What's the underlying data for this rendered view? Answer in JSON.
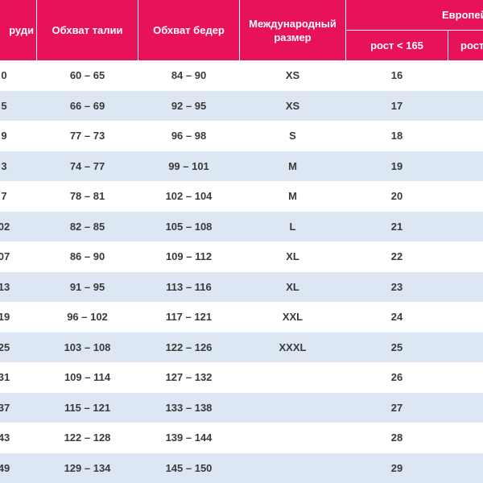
{
  "header": {
    "chest": "руди",
    "waist": "Обхват талии",
    "hips": "Обхват бедер",
    "intl": "Международный размер",
    "eu": "Европей",
    "eu_short": "рост < 165",
    "eu_tall": "рост"
  },
  "rows": [
    {
      "chest": "0",
      "waist": "60 – 65",
      "hips": "84 – 90",
      "intl": "XS",
      "eu": "16"
    },
    {
      "chest": "5",
      "waist": "66 – 69",
      "hips": "92 – 95",
      "intl": "XS",
      "eu": "17"
    },
    {
      "chest": "9",
      "waist": "77 – 73",
      "hips": "96 – 98",
      "intl": "S",
      "eu": "18"
    },
    {
      "chest": "3",
      "waist": "74 – 77",
      "hips": "99 – 101",
      "intl": "M",
      "eu": "19"
    },
    {
      "chest": "7",
      "waist": "78 – 81",
      "hips": "102 – 104",
      "intl": "M",
      "eu": "20"
    },
    {
      "chest": "02",
      "waist": "82 – 85",
      "hips": "105 – 108",
      "intl": "L",
      "eu": "21"
    },
    {
      "chest": "07",
      "waist": "86 – 90",
      "hips": "109 – 112",
      "intl": "XL",
      "eu": "22"
    },
    {
      "chest": "13",
      "waist": "91 – 95",
      "hips": "113 – 116",
      "intl": "XL",
      "eu": "23"
    },
    {
      "chest": "19",
      "waist": "96 – 102",
      "hips": "117 – 121",
      "intl": "XXL",
      "eu": "24"
    },
    {
      "chest": "25",
      "waist": "103 – 108",
      "hips": "122 – 126",
      "intl": "XXXL",
      "eu": "25"
    },
    {
      "chest": "31",
      "waist": "109 – 114",
      "hips": "127 – 132",
      "eu": "26"
    },
    {
      "chest": "37",
      "waist": "115 – 121",
      "hips": "133 – 138",
      "eu": "27"
    },
    {
      "chest": "43",
      "waist": "122 – 128",
      "hips": "139 – 144",
      "eu": "28"
    },
    {
      "chest": "49",
      "waist": "129 – 134",
      "hips": "145 – 150",
      "eu": "29"
    }
  ]
}
